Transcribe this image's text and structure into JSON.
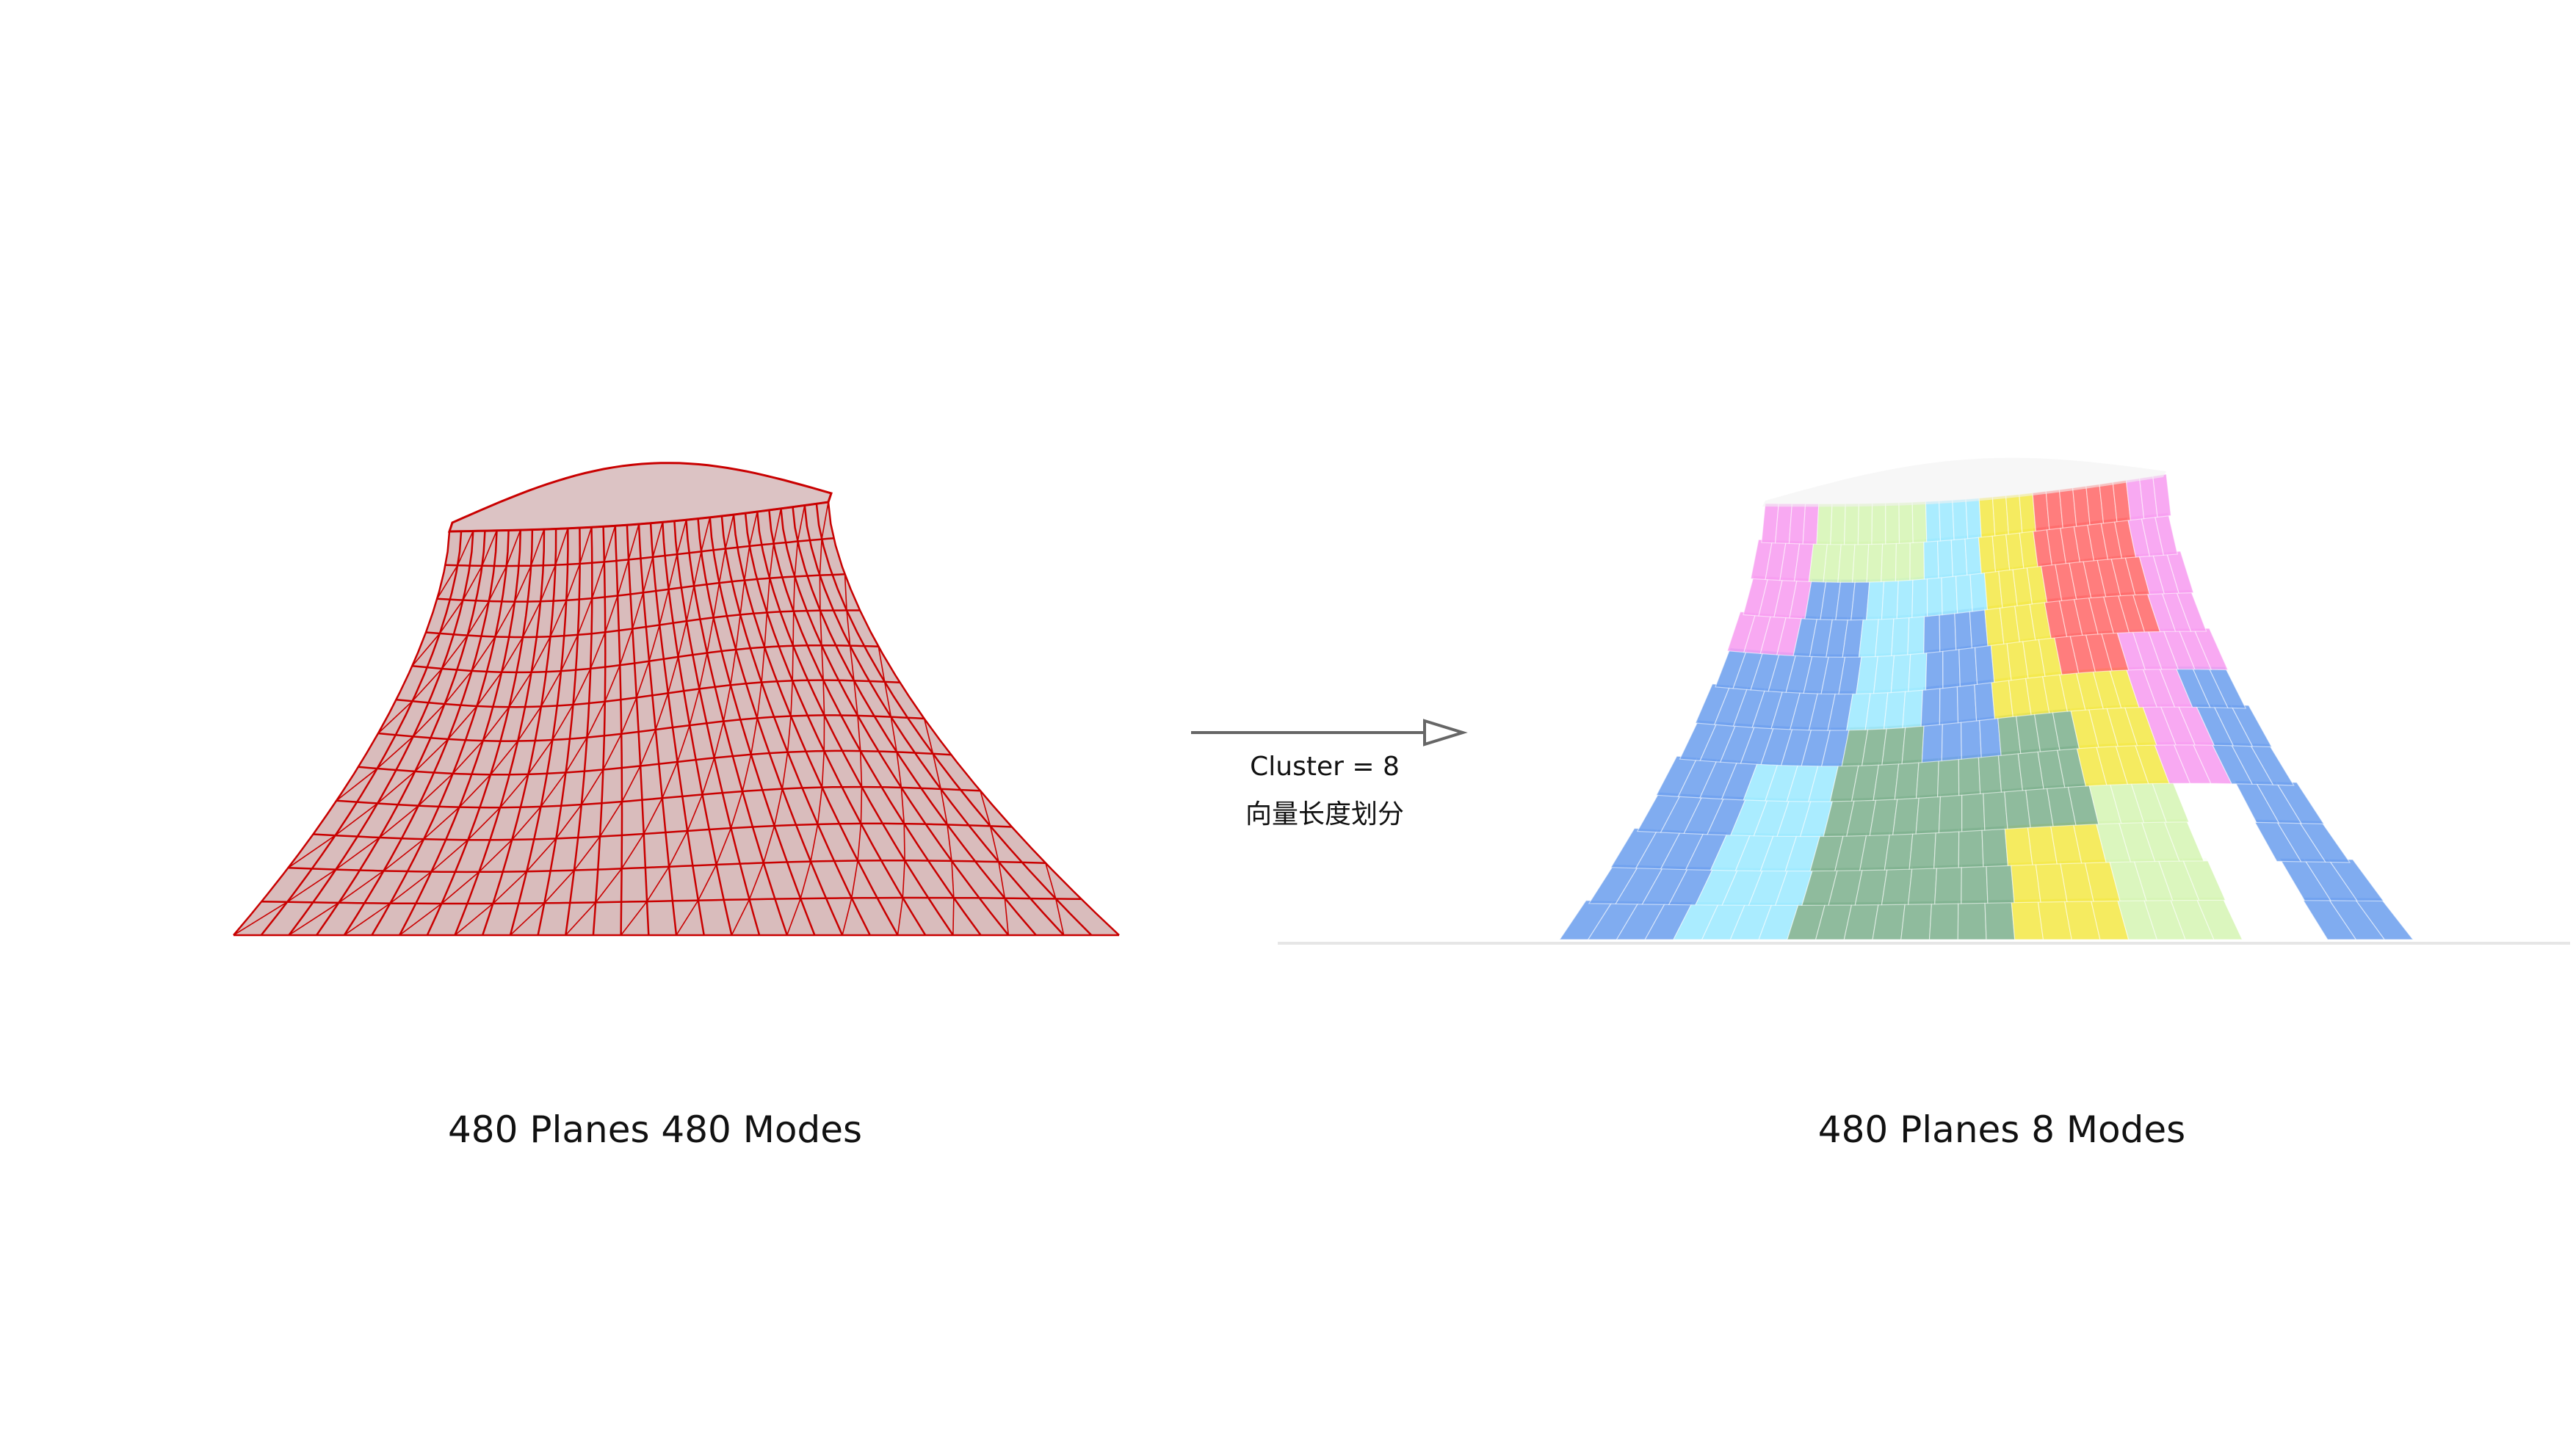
{
  "left": {
    "caption": "480 Planes  480 Modes",
    "wire_color": "#c90000",
    "fill_color": "#c08f90"
  },
  "right": {
    "caption": "480 Planes  8 Modes",
    "cluster_colors": [
      "#9ee9ff",
      "#f4e84a",
      "#f79df0",
      "#ff6b6b",
      "#7fb28f",
      "#6ea0ee",
      "#d6f5b5",
      "#ffffff"
    ]
  },
  "transition": {
    "cluster_label": "Cluster = 8",
    "method_label": "向量长度划分",
    "arrow_color": "#666666"
  }
}
